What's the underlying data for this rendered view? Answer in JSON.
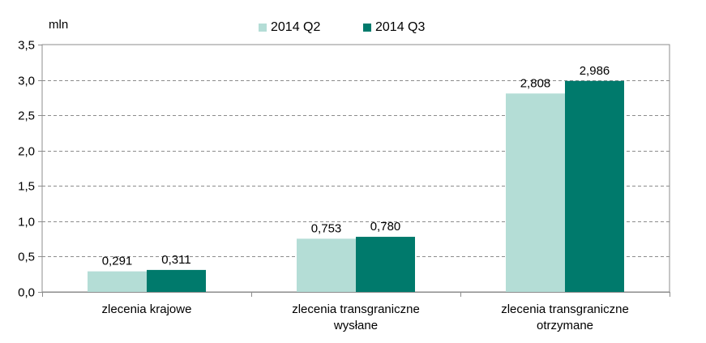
{
  "chart_data": {
    "type": "bar",
    "unit": "mln",
    "categories": [
      [
        "zlecenia krajowe"
      ],
      [
        "zlecenia transgraniczne",
        "wysłane"
      ],
      [
        "zlecenia transgraniczne",
        "otrzymane"
      ]
    ],
    "series": [
      {
        "name": "2014 Q2",
        "color": "#b4ddd6",
        "values": [
          0.291,
          0.753,
          2.808
        ],
        "labels": [
          "0,291",
          "0,753",
          "2,808"
        ]
      },
      {
        "name": "2014 Q3",
        "color": "#007a6c",
        "values": [
          0.311,
          0.78,
          2.986
        ],
        "labels": [
          "0,311",
          "0,780",
          "2,986"
        ]
      }
    ],
    "yticks": [
      "0,0",
      "0,5",
      "1,0",
      "1,5",
      "2,0",
      "2,5",
      "3,0",
      "3,5"
    ],
    "ylim": [
      0,
      3.5
    ],
    "grid": true,
    "legend_position": "top"
  }
}
